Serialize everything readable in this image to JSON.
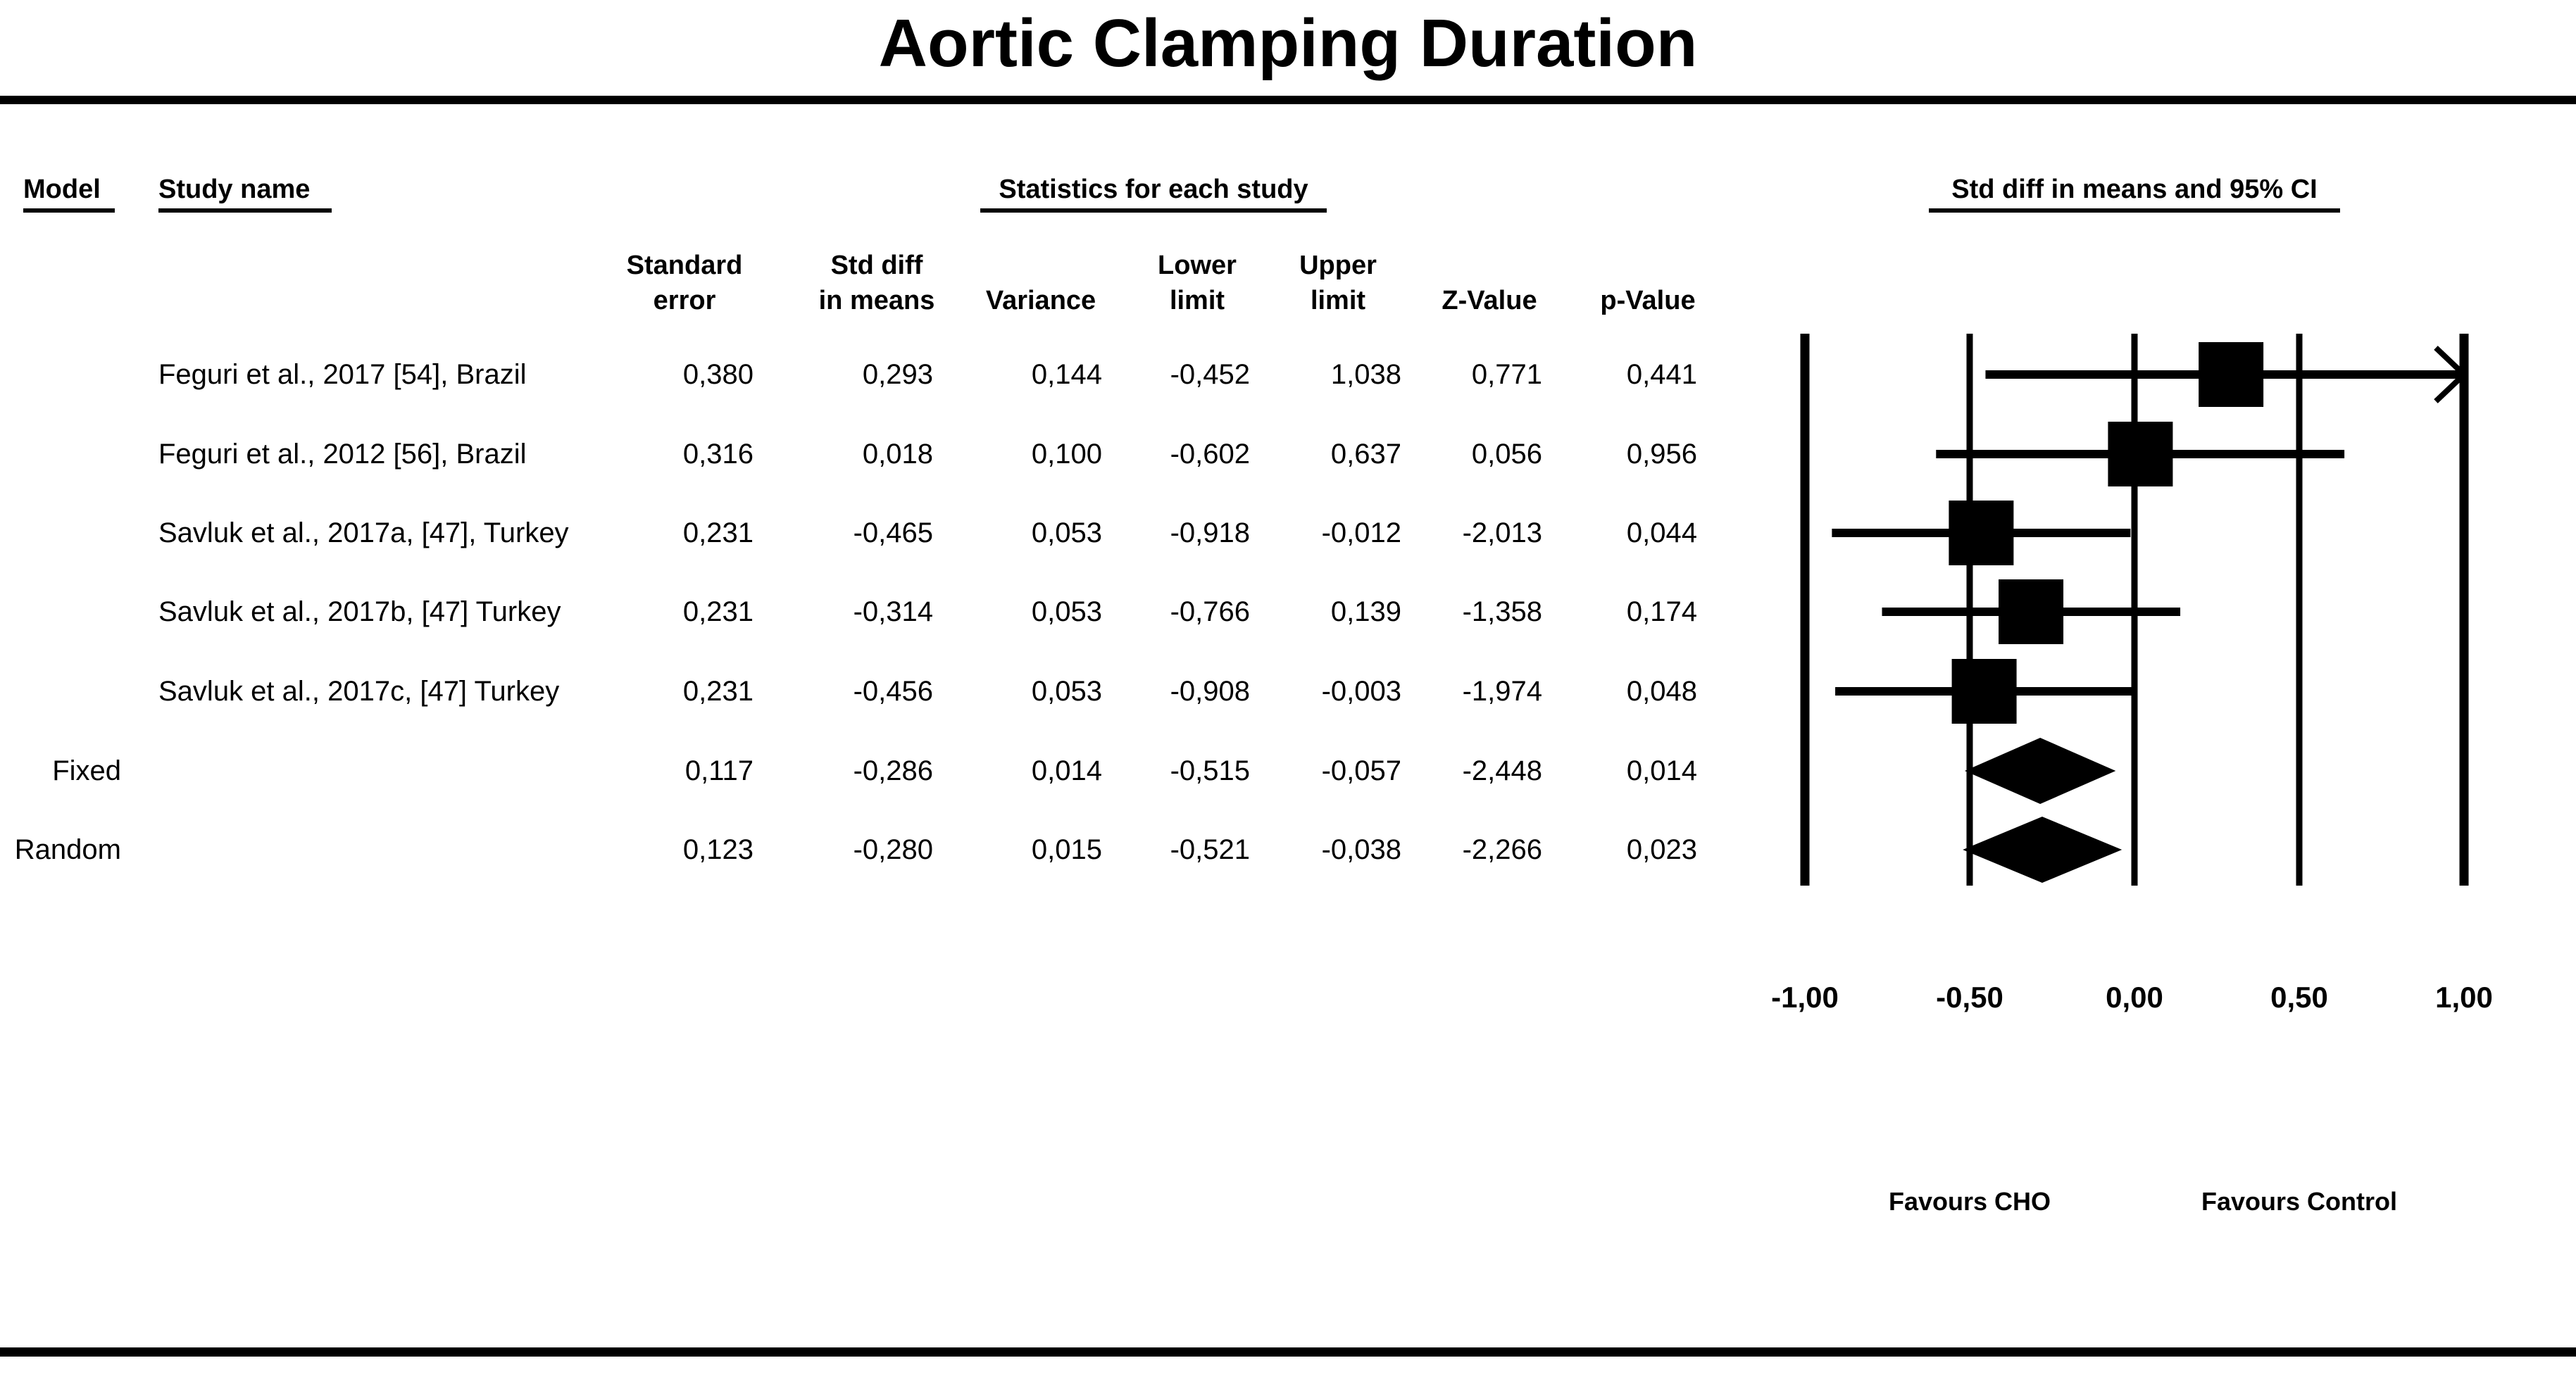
{
  "page": {
    "title": "Aortic Clamping Duration"
  },
  "colors": {
    "ink": "#000000",
    "background": "#ffffff"
  },
  "table": {
    "group_headers": {
      "model": "Model",
      "study": "Study name",
      "stats": "Statistics for each study",
      "plot": "Std diff in means and 95% CI"
    },
    "columns": [
      {
        "line1": "Standard",
        "line2": "error"
      },
      {
        "line1": "Std diff",
        "line2": "in means"
      },
      {
        "line1": "",
        "line2": "Variance"
      },
      {
        "line1": "Lower",
        "line2": "limit"
      },
      {
        "line1": "Upper",
        "line2": "limit"
      },
      {
        "line1": "",
        "line2": "Z-Value"
      },
      {
        "line1": "",
        "line2": "p-Value"
      }
    ],
    "rows": [
      {
        "model": "",
        "study": "Feguri et al., 2017 [54], Brazil",
        "values": [
          "0,380",
          "0,293",
          "0,144",
          "-0,452",
          "1,038",
          "0,771",
          "0,441"
        ]
      },
      {
        "model": "",
        "study": "Feguri et al., 2012 [56], Brazil",
        "values": [
          "0,316",
          "0,018",
          "0,100",
          "-0,602",
          "0,637",
          "0,056",
          "0,956"
        ]
      },
      {
        "model": "",
        "study": "Savluk et al., 2017a, [47], Turkey",
        "values": [
          "0,231",
          "-0,465",
          "0,053",
          "-0,918",
          "-0,012",
          "-2,013",
          "0,044"
        ]
      },
      {
        "model": "",
        "study": "Savluk et al., 2017b, [47] Turkey",
        "values": [
          "0,231",
          "-0,314",
          "0,053",
          "-0,766",
          "0,139",
          "-1,358",
          "0,174"
        ]
      },
      {
        "model": "",
        "study": "Savluk et al., 2017c, [47] Turkey",
        "values": [
          "0,231",
          "-0,456",
          "0,053",
          "-0,908",
          "-0,003",
          "-1,974",
          "0,048"
        ]
      },
      {
        "model": "Fixed",
        "study": "",
        "values": [
          "0,117",
          "-0,286",
          "0,014",
          "-0,515",
          "-0,057",
          "-2,448",
          "0,014"
        ]
      },
      {
        "model": "Random",
        "study": "",
        "values": [
          "0,123",
          "-0,280",
          "0,015",
          "-0,521",
          "-0,038",
          "-2,266",
          "0,023"
        ]
      }
    ]
  },
  "chart_data": {
    "type": "forest",
    "title": "Aortic Clamping Duration",
    "effect_measure": "Std diff in means",
    "xlim": [
      -1,
      1
    ],
    "grid": "vertical-lines",
    "legend_position": "none",
    "ticks": [
      {
        "value": -1.0,
        "label": "-1,00"
      },
      {
        "value": -0.5,
        "label": "-0,50"
      },
      {
        "value": 0.0,
        "label": "0,00"
      },
      {
        "value": 0.5,
        "label": "0,50"
      },
      {
        "value": 1.0,
        "label": "1,00"
      }
    ],
    "studies": [
      {
        "name": "Feguri et al., 2017 [54], Brazil",
        "point": 0.293,
        "lower": -0.452,
        "upper": 1.038
      },
      {
        "name": "Feguri et al., 2012 [56], Brazil",
        "point": 0.018,
        "lower": -0.602,
        "upper": 0.637
      },
      {
        "name": "Savluk et al., 2017a, [47], Turkey",
        "point": -0.465,
        "lower": -0.918,
        "upper": -0.012
      },
      {
        "name": "Savluk et al., 2017b, [47] Turkey",
        "point": -0.314,
        "lower": -0.766,
        "upper": 0.139
      },
      {
        "name": "Savluk et al., 2017c, [47] Turkey",
        "point": -0.456,
        "lower": -0.908,
        "upper": -0.003
      }
    ],
    "summaries": [
      {
        "name": "Fixed",
        "point": -0.286,
        "lower": -0.515,
        "upper": -0.057
      },
      {
        "name": "Random",
        "point": -0.28,
        "lower": -0.521,
        "upper": -0.038
      }
    ],
    "favours": {
      "left": "Favours CHO",
      "right": "Favours Control"
    }
  }
}
